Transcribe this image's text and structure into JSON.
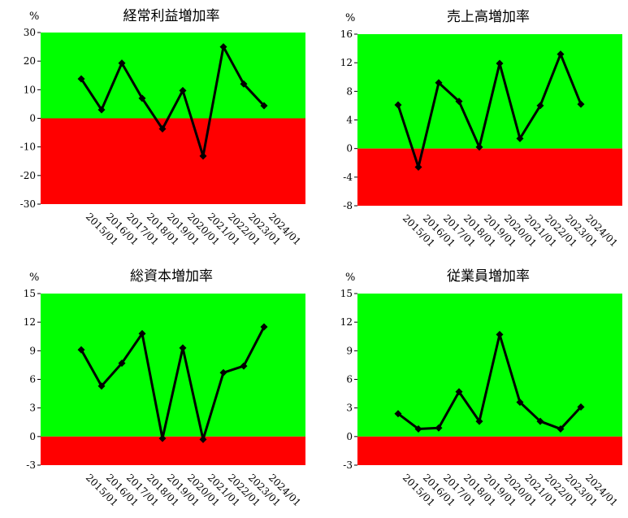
{
  "colors": {
    "positive": "#00ff00",
    "negative": "#ff0000",
    "line": "#000000"
  },
  "chart_data": [
    {
      "type": "line",
      "title": "経常利益増加率",
      "unit": "%",
      "x": [
        "2015/01",
        "2016/01",
        "2017/01",
        "2018/01",
        "2019/01",
        "2020/01",
        "2021/01",
        "2022/01",
        "2023/01",
        "2024/01"
      ],
      "y": [
        13.8,
        3.0,
        19.3,
        7.0,
        -3.7,
        9.7,
        -13.2,
        25.0,
        12.0,
        4.4
      ],
      "ylim": [
        -30,
        30
      ],
      "yticks": [
        -30,
        -20,
        -10,
        0,
        10,
        20,
        30
      ],
      "ytick_labels": [
        "-30",
        "-20",
        "-10",
        "0",
        "10",
        "20",
        "30"
      ]
    },
    {
      "type": "line",
      "title": "売上高増加率",
      "unit": "%",
      "x": [
        "2015/01",
        "2016/01",
        "2017/01",
        "2018/01",
        "2019/01",
        "2020/01",
        "2021/01",
        "2022/01",
        "2023/01",
        "2024/01"
      ],
      "y": [
        6.1,
        -2.6,
        9.2,
        6.6,
        0.2,
        11.9,
        1.4,
        6.0,
        13.2,
        6.2
      ],
      "ylim": [
        -8,
        16
      ],
      "yticks": [
        -8,
        -4,
        0,
        4,
        8,
        12,
        16
      ],
      "ytick_labels": [
        "-8",
        "-4",
        "0",
        "4",
        "8",
        "12",
        "16"
      ]
    },
    {
      "type": "line",
      "title": "総資本増加率",
      "unit": "%",
      "x": [
        "2015/01",
        "2016/01",
        "2017/01",
        "2018/01",
        "2019/01",
        "2020/01",
        "2021/01",
        "2022/01",
        "2023/01",
        "2024/01"
      ],
      "y": [
        9.1,
        5.3,
        7.7,
        10.8,
        -0.2,
        9.3,
        -0.3,
        6.7,
        7.4,
        11.5
      ],
      "ylim": [
        -3,
        15
      ],
      "yticks": [
        -3,
        0,
        3,
        6,
        9,
        12,
        15
      ],
      "ytick_labels": [
        "-3",
        "0",
        "3",
        "6",
        "9",
        "12",
        "15"
      ]
    },
    {
      "type": "line",
      "title": "従業員増加率",
      "unit": "%",
      "x": [
        "2015/01",
        "2016/01",
        "2017/01",
        "2018/01",
        "2019/01",
        "2020/01",
        "2021/01",
        "2022/01",
        "2023/01",
        "2024/01"
      ],
      "y": [
        2.4,
        0.8,
        0.9,
        4.7,
        1.6,
        10.7,
        3.6,
        1.6,
        0.8,
        3.1
      ],
      "ylim": [
        -3,
        15
      ],
      "yticks": [
        -3,
        0,
        3,
        6,
        9,
        12,
        15
      ],
      "ytick_labels": [
        "-3",
        "0",
        "3",
        "6",
        "9",
        "12",
        "15"
      ]
    }
  ]
}
